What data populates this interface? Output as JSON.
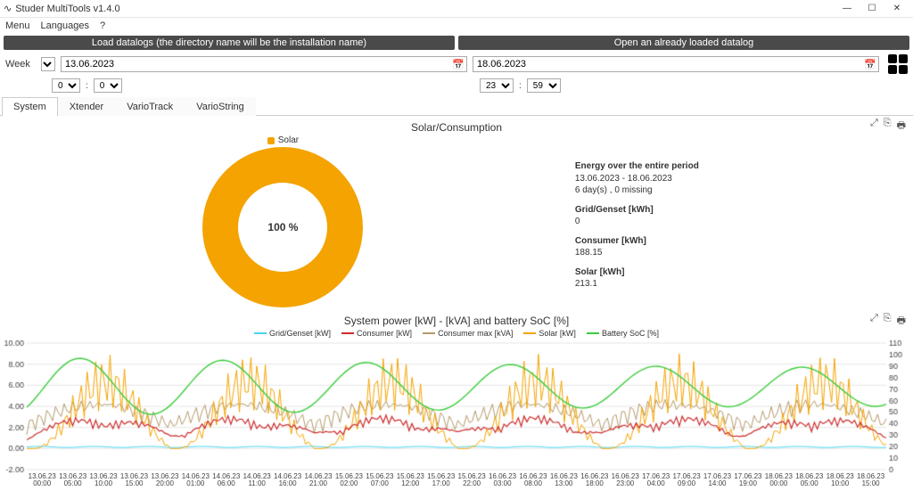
{
  "app": {
    "title": "Studer MultiTools v1.4.0"
  },
  "menu": {
    "items": [
      "Menu",
      "Languages",
      "?"
    ]
  },
  "loadbar": {
    "left": "Load datalogs (the directory name will be the installation name)",
    "right": "Open an already loaded datalog"
  },
  "range": {
    "mode_label": "Week",
    "from": "13.06.2023",
    "to": "18.06.2023",
    "from_h": "0",
    "from_m": "0",
    "to_h": "23",
    "to_m": "59"
  },
  "tabs": {
    "items": [
      "System",
      "Xtender",
      "VarioTrack",
      "VarioString"
    ],
    "active": 0
  },
  "donut": {
    "title": "Solar/Consumption",
    "legend_label": "Solar",
    "center": "100 %",
    "color": "#f4a300"
  },
  "stats": {
    "title": "Energy over the entire period",
    "period": "13.06.2023  -  18.06.2023",
    "days": "6 day(s) , 0 missing",
    "grid_label": "Grid/Genset [kWh]",
    "grid_value": "0",
    "cons_label": "Consumer [kWh]",
    "cons_value": "188.15",
    "solar_label": "Solar [kWh]",
    "solar_value": "213.1"
  },
  "chart2": {
    "title": "System power [kW] - [kVA] and battery SoC [%]",
    "series": [
      {
        "name": "Grid/Genset [kW]",
        "color": "#46d4f2"
      },
      {
        "name": "Consumer [kW]",
        "color": "#cc2b2b"
      },
      {
        "name": "Consumer max [kVA]",
        "color": "#b59a6b"
      },
      {
        "name": "Solar [kW]",
        "color": "#f4a300"
      },
      {
        "name": "Battery SoC [%]",
        "color": "#3bcc3b"
      }
    ],
    "y_left": {
      "min": -2,
      "max": 10,
      "step": 2
    },
    "y_right": {
      "min": 0,
      "max": 110,
      "step": 10
    },
    "x_ticks": [
      "13.06.23\n00:00",
      "13.06.23\n05:00",
      "13.06.23\n10:00",
      "13.06.23\n15:00",
      "13.06.23\n20:00",
      "14.06.23\n01:00",
      "14.06.23\n06:00",
      "14.06.23\n11:00",
      "14.06.23\n16:00",
      "14.06.23\n21:00",
      "15.06.23\n02:00",
      "15.06.23\n07:00",
      "15.06.23\n12:00",
      "15.06.23\n17:00",
      "15.06.23\n22:00",
      "16.06.23\n03:00",
      "16.06.23\n08:00",
      "16.06.23\n13:00",
      "16.06.23\n18:00",
      "16.06.23\n23:00",
      "17.06.23\n04:00",
      "17.06.23\n09:00",
      "17.06.23\n14:00",
      "17.06.23\n19:00",
      "18.06.23\n00:00",
      "18.06.23\n05:00",
      "18.06.23\n10:00",
      "18.06.23\n15:00"
    ],
    "background": "#ffffff",
    "grid_color": "#e6e6e6"
  }
}
